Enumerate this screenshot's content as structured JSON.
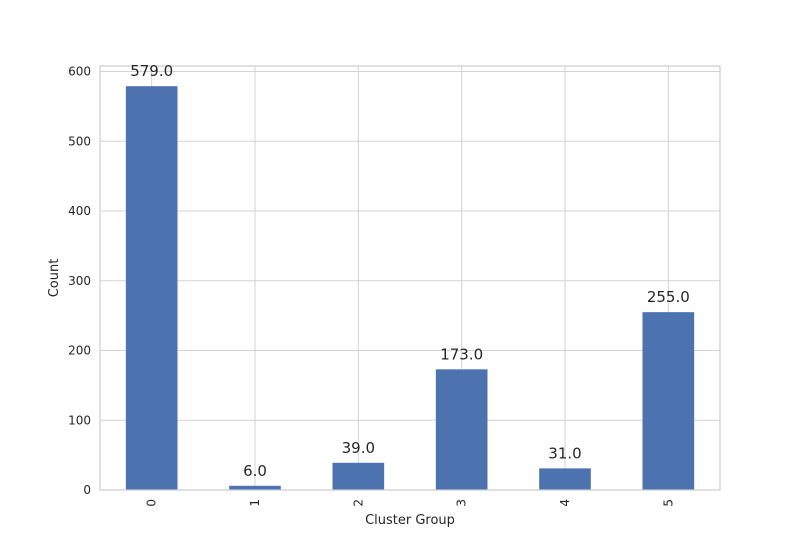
{
  "chart_data": {
    "type": "bar",
    "title": "",
    "xlabel": "Cluster Group",
    "ylabel": "Count",
    "categories": [
      "0",
      "1",
      "2",
      "3",
      "4",
      "5"
    ],
    "values": [
      579,
      6,
      39,
      173,
      31,
      255
    ],
    "data_labels": [
      "579.0",
      "6.0",
      "39.0",
      "173.0",
      "31.0",
      "255.0"
    ],
    "ylim": [
      0,
      607.95
    ],
    "yticks": [
      0,
      100,
      200,
      300,
      400,
      500,
      600
    ],
    "ytick_labels": [
      "0",
      "100",
      "200",
      "300",
      "400",
      "500",
      "600"
    ],
    "x_tick_rotation": "vertical",
    "grid": true,
    "legend": "none",
    "colors": {
      "bar": "#4c72b0",
      "grid": "#d3d3d3",
      "frame": "#cccccc",
      "text": "#262626",
      "background": "#ffffff"
    }
  }
}
